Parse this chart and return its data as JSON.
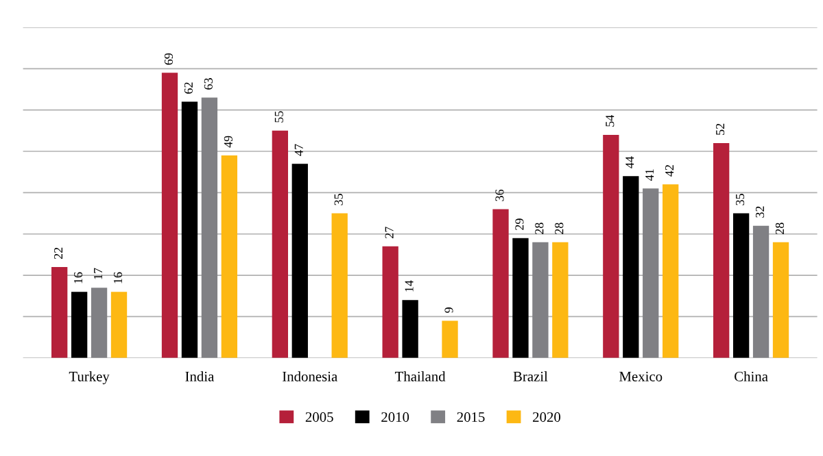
{
  "chart_data": {
    "type": "bar",
    "categories": [
      "Turkey",
      "India",
      "Indonesia",
      "Thailand",
      "Brazil",
      "Mexico",
      "China"
    ],
    "series": [
      {
        "name": "2005",
        "color": "#b5203a",
        "values": [
          22,
          69,
          55,
          27,
          36,
          54,
          52
        ]
      },
      {
        "name": "2010",
        "color": "#000000",
        "values": [
          16,
          62,
          47,
          14,
          29,
          44,
          35
        ]
      },
      {
        "name": "2015",
        "color": "#808084",
        "values": [
          17,
          63,
          null,
          null,
          28,
          41,
          32
        ]
      },
      {
        "name": "2020",
        "color": "#fdb813",
        "values": [
          16,
          49,
          35,
          9,
          28,
          42,
          28
        ]
      }
    ],
    "ylim": [
      0,
      80
    ],
    "yticks": [
      {
        "value": 0,
        "label": null
      },
      {
        "value": 10,
        "label": null
      },
      {
        "value": 20,
        "label": null
      },
      {
        "value": 30,
        "label": null
      },
      {
        "value": 40,
        "label": null
      },
      {
        "value": 50,
        "label": null
      },
      {
        "value": 60,
        "label": null
      },
      {
        "value": 70,
        "label": null
      },
      {
        "value": 80,
        "label": null
      }
    ],
    "tick_labels": "x",
    "grid": "y",
    "data_labels": true,
    "legend": "bottom"
  }
}
